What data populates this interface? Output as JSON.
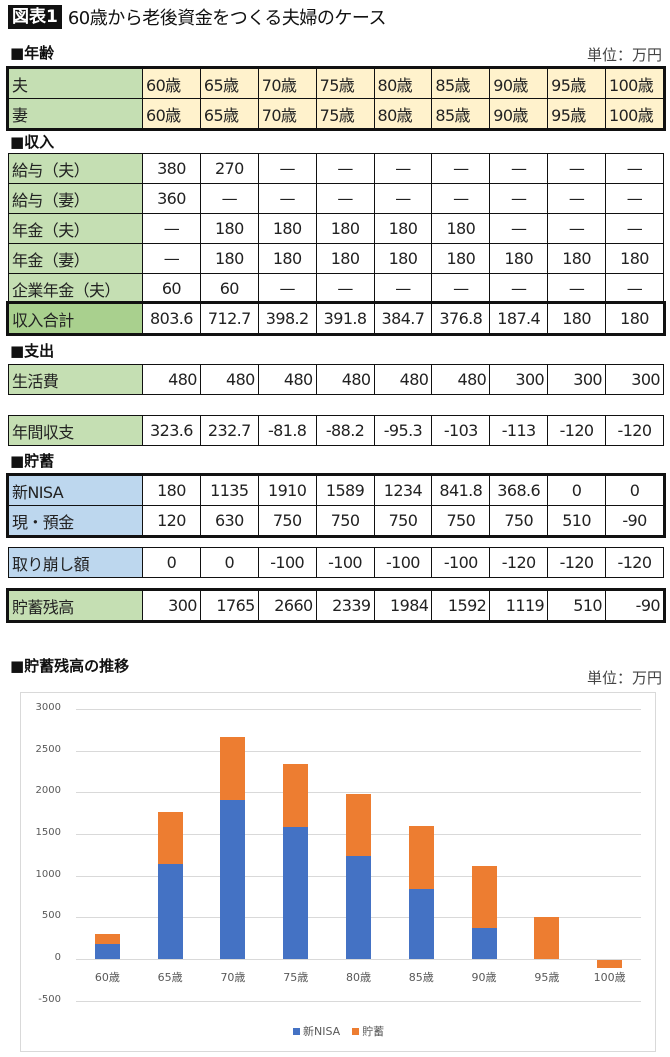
{
  "header": {
    "badge": "図表1",
    "title": "60歳から老後資金をつくる夫婦のケース"
  },
  "unit_label": "単位：万円",
  "columns": [
    "60歳",
    "65歳",
    "70歳",
    "75歳",
    "80歳",
    "85歳",
    "90歳",
    "95歳",
    "100歳"
  ],
  "sections": {
    "age": {
      "heading": "■年齢",
      "rows": [
        {
          "label": "夫",
          "values": [
            "60歳",
            "65歳",
            "70歳",
            "75歳",
            "80歳",
            "85歳",
            "90歳",
            "95歳",
            "100歳"
          ]
        },
        {
          "label": "妻",
          "values": [
            "60歳",
            "65歳",
            "70歳",
            "75歳",
            "80歳",
            "85歳",
            "90歳",
            "95歳",
            "100歳"
          ]
        }
      ]
    },
    "income": {
      "heading": "■収入",
      "rows": [
        {
          "label": "給与（夫）",
          "values": [
            "380",
            "270",
            "—",
            "—",
            "—",
            "—",
            "—",
            "—",
            "—"
          ]
        },
        {
          "label": "給与（妻）",
          "values": [
            "360",
            "—",
            "—",
            "—",
            "—",
            "—",
            "—",
            "—",
            "—"
          ]
        },
        {
          "label": "年金（夫）",
          "values": [
            "—",
            "180",
            "180",
            "180",
            "180",
            "180",
            "—",
            "—",
            "—"
          ]
        },
        {
          "label": "年金（妻）",
          "values": [
            "—",
            "180",
            "180",
            "180",
            "180",
            "180",
            "180",
            "180",
            "180"
          ]
        },
        {
          "label": "企業年金（夫）",
          "values": [
            "60",
            "60",
            "—",
            "—",
            "—",
            "—",
            "—",
            "—",
            "—"
          ]
        }
      ],
      "total": {
        "label": "収入合計",
        "values": [
          "803.6",
          "712.7",
          "398.2",
          "391.8",
          "384.7",
          "376.8",
          "187.4",
          "180",
          "180"
        ]
      }
    },
    "expense": {
      "heading": "■支出",
      "rows": [
        {
          "label": "生活費",
          "values": [
            "480",
            "480",
            "480",
            "480",
            "480",
            "480",
            "300",
            "300",
            "300"
          ]
        }
      ]
    },
    "balance": {
      "label": "年間収支",
      "values": [
        "323.6",
        "232.7",
        "-81.8",
        "-88.2",
        "-95.3",
        "-103",
        "-113",
        "-120",
        "-120"
      ]
    },
    "savings": {
      "heading": "■貯蓄",
      "rows": [
        {
          "label": "新NISA",
          "values": [
            "180",
            "1135",
            "1910",
            "1589",
            "1234",
            "841.8",
            "368.6",
            "0",
            "0"
          ]
        },
        {
          "label": "現・預金",
          "values": [
            "120",
            "630",
            "750",
            "750",
            "750",
            "750",
            "750",
            "510",
            "-90"
          ]
        }
      ],
      "withdrawal": {
        "label": "取り崩し額",
        "values": [
          "0",
          "0",
          "-100",
          "-100",
          "-100",
          "-100",
          "-120",
          "-120",
          "-120"
        ]
      },
      "total": {
        "label": "貯蓄残高",
        "values": [
          "300",
          "1765",
          "2660",
          "2339",
          "1984",
          "1592",
          "1119",
          "510",
          "-90"
        ]
      }
    }
  },
  "chart": {
    "heading": "■貯蓄残高の推移",
    "unit_label": "単位：万円",
    "colors": {
      "nisa": "#4472c4",
      "savings": "#ed7d31",
      "grid": "#d9d9d9"
    }
  },
  "chart_data": {
    "type": "bar",
    "stacked": true,
    "title": "貯蓄残高の推移",
    "xlabel": "",
    "ylabel": "",
    "unit": "万円",
    "categories": [
      "60歳",
      "65歳",
      "70歳",
      "75歳",
      "80歳",
      "85歳",
      "90歳",
      "95歳",
      "100歳"
    ],
    "series": [
      {
        "name": "新NISA",
        "color": "#4472c4",
        "values": [
          180,
          1135,
          1910,
          1589,
          1234,
          841.8,
          368.6,
          0,
          0
        ]
      },
      {
        "name": "貯蓄",
        "color": "#ed7d31",
        "values": [
          120,
          630,
          750,
          750,
          750,
          750,
          750,
          510,
          -90
        ]
      }
    ],
    "ylim": [
      -500,
      3000
    ],
    "yticks": [
      3000,
      2500,
      2000,
      1500,
      1000,
      500,
      0,
      -500
    ],
    "grid": true,
    "legend_position": "bottom"
  }
}
